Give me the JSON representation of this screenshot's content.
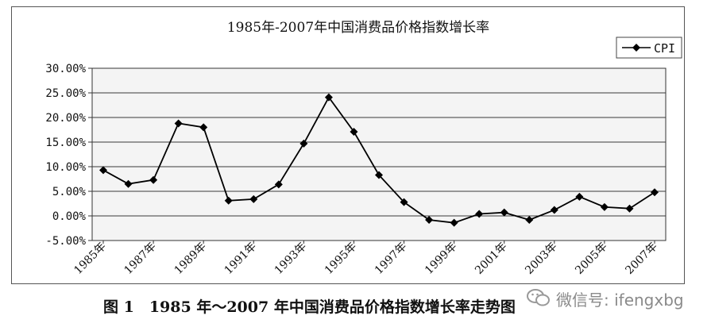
{
  "chart_data": {
    "type": "line",
    "title": "1985年-2007年中国消费品价格指数增长率",
    "xlabel": "",
    "ylabel": "",
    "ylim": [
      -5,
      30
    ],
    "y_ticks": [
      "30.00%",
      "25.00%",
      "20.00%",
      "15.00%",
      "10.00%",
      "5.00%",
      "0.00%",
      "-5.00%"
    ],
    "x_tick_labels": [
      "1985年",
      "1987年",
      "1989年",
      "1991年",
      "1993年",
      "1995年",
      "1997年",
      "1999年",
      "2001年",
      "2003年",
      "2005年",
      "2007年"
    ],
    "grid": "horizontal",
    "legend_position": "top-right",
    "series": [
      {
        "name": "CPI",
        "x": [
          1985,
          1986,
          1987,
          1988,
          1989,
          1990,
          1991,
          1992,
          1993,
          1994,
          1995,
          1996,
          1997,
          1998,
          1999,
          2000,
          2001,
          2002,
          2003,
          2004,
          2005,
          2006,
          2007
        ],
        "values": [
          9.3,
          6.5,
          7.3,
          18.8,
          18.0,
          3.1,
          3.4,
          6.4,
          14.7,
          24.1,
          17.1,
          8.3,
          2.8,
          -0.8,
          -1.4,
          0.4,
          0.7,
          -0.8,
          1.2,
          3.9,
          1.8,
          1.5,
          4.8
        ],
        "color": "#000000"
      }
    ]
  },
  "caption": "图 1　1985 年～2007 年中国消费品价格指数增长率走势图",
  "watermark": "微信号: ifengxbg"
}
